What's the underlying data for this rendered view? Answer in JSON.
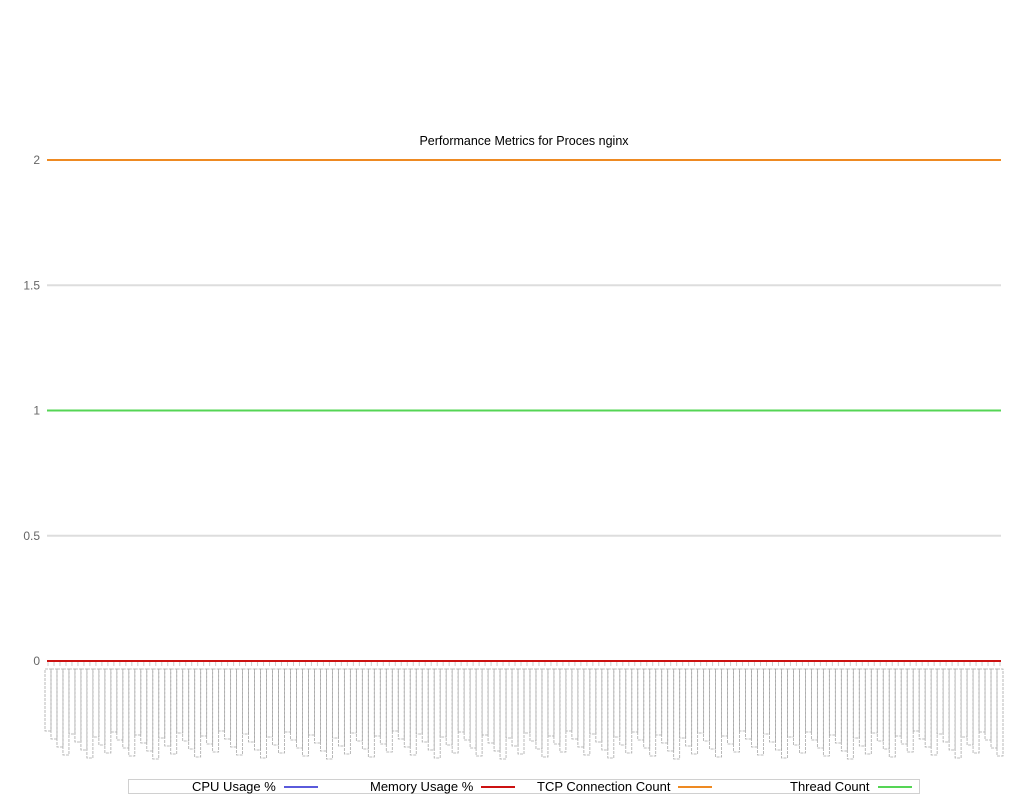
{
  "chart_data": {
    "type": "line",
    "title": "Performance Metrics for Proces nginx",
    "ylim": [
      0,
      2
    ],
    "yticks": [
      "0",
      "0.5",
      "1",
      "1.5",
      "2"
    ],
    "ytick_values": [
      0,
      0.5,
      1,
      1.5,
      2
    ],
    "grid": true,
    "legend_placement": "bottom",
    "x_point_count": 160,
    "series": [
      {
        "name": "CPU Usage %",
        "color": "#5a5adb",
        "value": 0
      },
      {
        "name": "Memory Usage %",
        "color": "#cc1111",
        "value": 0
      },
      {
        "name": "TCP Connection Count",
        "color": "#ee8a22",
        "value": 2
      },
      {
        "name": "Thread Count",
        "color": "#55d555",
        "value": 1
      }
    ]
  }
}
